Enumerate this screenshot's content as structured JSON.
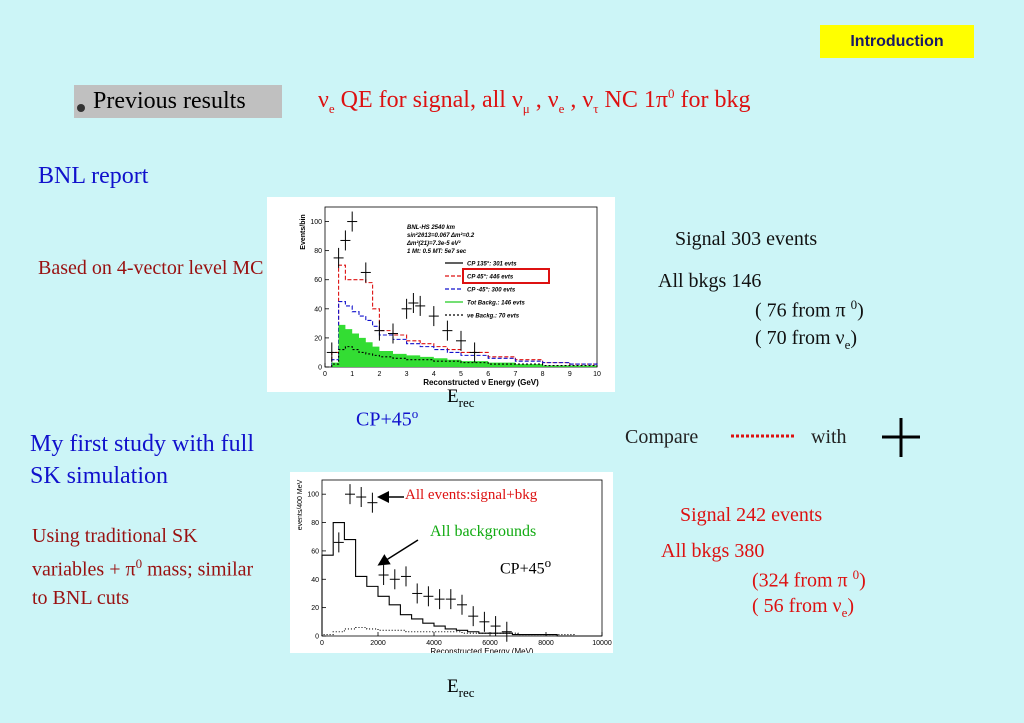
{
  "badge": {
    "label": "Introduction"
  },
  "bullet": {
    "label": "Previous results"
  },
  "headline": {
    "nu": "ν",
    "e": "e",
    "part1": " QE for signal, all ",
    "mu": "μ",
    "sep": " , ",
    "tau": "τ",
    "part2": "  NC 1",
    "pi": "π",
    "zero": "0",
    "part3": " for bkg"
  },
  "bnl": {
    "title": "BNL report",
    "note": "Based on 4-vector level MC",
    "signal": "Signal   303  events",
    "bkgs": "All bkgs   146",
    "pi0_pre": "( 76 from ",
    "pi0_post": ")",
    "nue_pre": "( 70 from ",
    "nue_post": ")",
    "erec_main": "E",
    "erec_sub": "rec",
    "cp_main": "CP+45",
    "cp_sup": "o"
  },
  "compare": {
    "label": "Compare",
    "with": "with"
  },
  "sk": {
    "title": "My first study with full SK simulation",
    "note_pre": "Using traditional SK variables + ",
    "note_post": " mass; similar to BNL cuts",
    "signal": "Signal  242 events",
    "bkgs": "All bkgs  380",
    "pi0_pre": "(324 from ",
    "pi0_post": ")",
    "nue_pre": "(  56 from ",
    "nue_post": ")",
    "erec_main": "E",
    "erec_sub": "rec",
    "annot_all": "All events:signal+bkg",
    "annot_bkg": "All backgrounds",
    "annot_cp": "CP+45",
    "annot_cp_sup": "o"
  },
  "symbols": {
    "pi": "π",
    "nu": "ν",
    "zero": "0",
    "e": "e"
  },
  "chart_data": [
    {
      "type": "line",
      "xlabel": "Reconstructed ν Energy (GeV)",
      "ylabel": "Events/bin",
      "x_ticks": [
        "0",
        "1",
        "2",
        "3",
        "4",
        "5",
        "6",
        "7",
        "8",
        "9",
        "10"
      ],
      "y_ticks": [
        "0",
        "20",
        "40",
        "60",
        "80",
        "100"
      ],
      "xlim": [
        0,
        10
      ],
      "ylim": [
        0,
        110
      ],
      "legend_placement": "top-right",
      "legend": [
        "CP 135°: 301 evts",
        "CP 45°: 446 evts",
        "CP -45°: 300 evts",
        "Tot Backg.: 146 evts",
        "νe Backg.: 70 evts"
      ],
      "info": [
        "BNL-HS 2540 km",
        "sin²2θ13=0.067 Δm²=0.2",
        "Δm²(21)=7.3e-5 eV²",
        "1 Mt: 0.5 MT: 5e7 sec"
      ],
      "series": [
        {
          "name": "CP 45°: 446 evts",
          "color": "#dd1111",
          "x": [
            0.25,
            0.5,
            0.75,
            1,
            1.25,
            1.5,
            1.75,
            2,
            2.5,
            3,
            3.5,
            4,
            4.5,
            5,
            6,
            7,
            8,
            9,
            10
          ],
          "y": [
            10,
            70,
            60,
            60,
            60,
            58,
            40,
            25,
            22,
            18,
            16,
            14,
            12,
            10,
            7,
            5,
            3,
            2,
            1
          ]
        },
        {
          "name": "CP -45°: 300 evts",
          "color": "#1111cc",
          "x": [
            0.25,
            0.5,
            0.75,
            1,
            1.25,
            1.5,
            1.75,
            2,
            2.5,
            3,
            3.5,
            4,
            4.5,
            5,
            6,
            7,
            8,
            9,
            10
          ],
          "y": [
            5,
            45,
            42,
            38,
            35,
            32,
            28,
            22,
            19,
            16,
            14,
            12,
            10,
            8,
            6,
            4,
            3,
            2,
            1
          ]
        },
        {
          "name": "Tot Backg.: 146 evts",
          "color": "#22cc22",
          "x": [
            0.25,
            0.5,
            0.75,
            1,
            1.25,
            1.5,
            1.75,
            2,
            2.5,
            3,
            3.5,
            4,
            4.5,
            5,
            6,
            7,
            8,
            9,
            10
          ],
          "y": [
            3,
            29,
            26,
            23,
            20,
            17,
            14,
            11,
            9,
            8,
            7,
            6,
            5,
            4,
            3,
            2,
            1,
            1,
            0
          ]
        },
        {
          "name": "νe Backg.: 70 evts",
          "color": "#000000",
          "x": [
            0.25,
            0.5,
            0.75,
            1,
            1.25,
            1.5,
            1.75,
            2,
            2.5,
            3,
            3.5,
            4,
            4.5,
            5,
            6,
            7,
            8,
            9,
            10
          ],
          "y": [
            2,
            12,
            14,
            12,
            10,
            9,
            8,
            7,
            6,
            5,
            5,
            4,
            4,
            3,
            2,
            2,
            1,
            1,
            0
          ]
        },
        {
          "name": "CP 135°: 301 evts",
          "color": "#000000",
          "style": "error-cross",
          "x": [
            0.25,
            0.5,
            0.75,
            1,
            1.5,
            2,
            2.5,
            3,
            3.25,
            3.5,
            4,
            4.5,
            5,
            5.5
          ],
          "y": [
            10,
            75,
            87,
            100,
            65,
            25,
            23,
            40,
            44,
            42,
            35,
            25,
            18,
            10
          ]
        }
      ]
    },
    {
      "type": "line",
      "xlabel": "Reconstructed Energy (MeV)",
      "ylabel": "events/400 MeV",
      "x_ticks": [
        "0",
        "2000",
        "4000",
        "6000",
        "8000",
        "10000"
      ],
      "y_ticks": [
        "0",
        "20",
        "40",
        "60",
        "80",
        "100"
      ],
      "xlim": [
        0,
        10000
      ],
      "ylim": [
        0,
        110
      ],
      "series": [
        {
          "name": "All backgrounds",
          "style": "histogram",
          "x": [
            0,
            400,
            800,
            1200,
            1600,
            2000,
            2400,
            2800,
            3200,
            3600,
            4000,
            4400,
            4800,
            5200,
            5600,
            6000,
            6400,
            6800,
            7200,
            7600,
            8000,
            8400,
            8800,
            9200,
            9600
          ],
          "y": [
            57,
            80,
            68,
            42,
            35,
            28,
            22,
            15,
            12,
            9,
            7,
            5,
            4,
            3,
            2,
            2,
            2,
            1,
            1,
            1,
            1,
            0,
            0,
            0,
            0
          ]
        },
        {
          "name": "All events:signal+bkg",
          "style": "error-cross",
          "x": [
            600,
            1000,
            1400,
            1800,
            2200,
            2600,
            3000,
            3400,
            3800,
            4200,
            4600,
            5000,
            5400,
            5800,
            6200,
            6600
          ],
          "y": [
            66,
            100,
            98,
            94,
            43,
            40,
            42,
            30,
            28,
            26,
            26,
            22,
            14,
            10,
            7,
            3
          ]
        },
        {
          "name": "",
          "style": "dotted",
          "x": [
            0,
            400,
            800,
            1200,
            1600,
            2000,
            3000,
            4000,
            5000,
            6000,
            7000,
            8000,
            9000,
            10000
          ],
          "y": [
            1,
            3,
            5,
            6,
            5,
            4,
            3,
            3,
            2,
            2,
            1,
            1,
            0,
            0
          ]
        }
      ]
    }
  ]
}
